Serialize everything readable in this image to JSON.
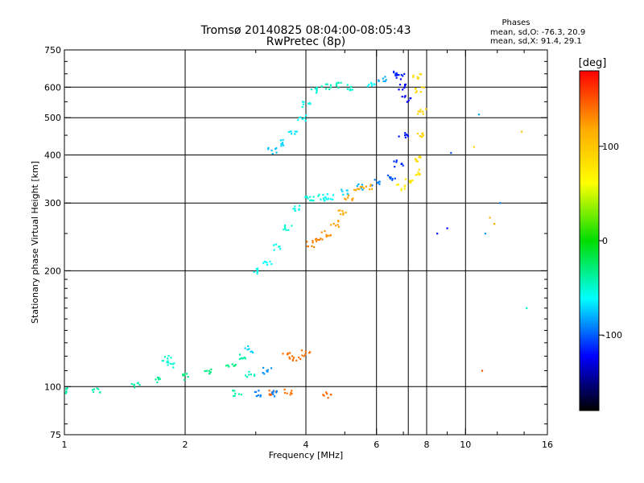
{
  "chart_data": {
    "type": "scatter",
    "title": "Tromsø 20140825 08:04:00-08:05:43",
    "subtitle": "RwPretec (8p)",
    "xlabel": "Frequency [MHz]",
    "ylabel": "Stationary phase Virtual Height [km]",
    "x_scale": "log",
    "y_scale": "log",
    "xlim": [
      1,
      16
    ],
    "ylim": [
      75,
      750
    ],
    "x_ticks": [
      1,
      2,
      4,
      6,
      8,
      10,
      16
    ],
    "x_minor_ticks": [
      3,
      5,
      7,
      9,
      12,
      14
    ],
    "y_ticks": [
      75,
      100,
      200,
      300,
      400,
      500,
      600,
      750
    ],
    "x_gridlines": [
      2,
      4,
      6,
      7.2,
      8,
      10
    ],
    "y_gridlines": [
      100,
      200,
      300,
      400,
      500,
      600
    ],
    "grid": true,
    "stats": {
      "header": "Phases",
      "line_o": "mean, sd,O:  -76.3, 20.9",
      "line_x": "mean, sd,X:  91.4, 29.1"
    },
    "colorbar": {
      "label": "[deg]",
      "range": [
        -180,
        180
      ],
      "ticks": [
        100,
        0,
        -100
      ],
      "placement": "right",
      "colormap": "rainbow"
    },
    "series": [
      {
        "mode": "O",
        "x": [
          1.0,
          1.2,
          1.5,
          1.7,
          2.0,
          2.3,
          2.6,
          2.8,
          2.9,
          3.0,
          3.2,
          3.4,
          3.6,
          3.8,
          4.0,
          4.2,
          4.4,
          4.6,
          5.0,
          5.5,
          6.0,
          6.5,
          6.8,
          7.0,
          7.1,
          7.0,
          6.9,
          6.8
        ],
        "y": [
          98,
          98,
          101,
          104,
          106,
          110,
          114,
          120,
          125,
          200,
          210,
          230,
          260,
          290,
          310,
          310,
          310,
          312,
          320,
          330,
          340,
          350,
          380,
          450,
          560,
          600,
          640,
          650
        ],
        "phase": [
          -40,
          -40,
          -40,
          -35,
          -30,
          -30,
          -30,
          -40,
          -70,
          -55,
          -60,
          -55,
          -50,
          -55,
          -50,
          -50,
          -55,
          -60,
          -70,
          -80,
          -90,
          -100,
          -110,
          -115,
          -120,
          -120,
          -115,
          -110
        ]
      },
      {
        "mode": "O",
        "x": [
          3.3,
          3.5,
          3.7,
          3.9,
          4.0,
          4.2,
          4.5,
          4.8,
          5.2,
          5.8,
          6.2
        ],
        "y": [
          410,
          430,
          460,
          500,
          540,
          590,
          600,
          605,
          600,
          605,
          630
        ],
        "phase": [
          -75,
          -70,
          -65,
          -60,
          -55,
          -50,
          -45,
          -45,
          -50,
          -60,
          -80
        ]
      },
      {
        "mode": "X",
        "x": [
          4.1,
          4.3,
          4.5,
          4.7,
          4.9,
          5.1,
          5.4,
          5.7
        ],
        "y": [
          235,
          240,
          250,
          265,
          285,
          310,
          325,
          330
        ],
        "phase": [
          135,
          135,
          130,
          125,
          120,
          125,
          120,
          120
        ]
      },
      {
        "mode": "X",
        "x": [
          6.9,
          7.2,
          7.5,
          7.7,
          7.8,
          7.8,
          7.7,
          7.6
        ],
        "y": [
          330,
          340,
          360,
          390,
          450,
          520,
          590,
          640
        ],
        "phase": [
          70,
          75,
          80,
          85,
          90,
          90,
          88,
          85
        ]
      },
      {
        "mode": "X",
        "x": [
          3.6,
          3.8,
          4.0,
          4.5,
          3.3,
          3.6
        ],
        "y": [
          120,
          118,
          122,
          95,
          96,
          97
        ],
        "phase": [
          140,
          140,
          140,
          145,
          145,
          140
        ]
      },
      {
        "mode": "O",
        "x": [
          1.8,
          1.85,
          2.7,
          3.0,
          3.3,
          2.9,
          3.2
        ],
        "y": [
          118,
          114,
          96,
          96,
          96,
          108,
          110
        ],
        "phase": [
          -50,
          -50,
          -40,
          -90,
          -90,
          -45,
          -85
        ]
      },
      {
        "mode": "sparse",
        "x": [
          9.2,
          9.0,
          8.5,
          10.5,
          10.8,
          11.2,
          11.8,
          12.2,
          11.5,
          13.8,
          14.2,
          11.0
        ],
        "y": [
          405,
          258,
          250,
          420,
          510,
          250,
          265,
          300,
          275,
          460,
          160,
          110
        ],
        "phase": [
          -100,
          -120,
          -115,
          90,
          -80,
          -85,
          120,
          -90,
          110,
          100,
          -45,
          150
        ]
      }
    ]
  }
}
